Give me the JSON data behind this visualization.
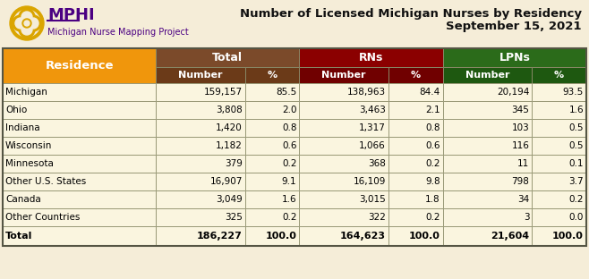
{
  "title_line1": "Number of Licensed Michigan Nurses by Residency",
  "title_line2": "September 15, 2021",
  "header_residence": "Residence",
  "col_groups": [
    "Total",
    "RNs",
    "LPNs"
  ],
  "col_subheaders": [
    "Number",
    "%",
    "Number",
    "%",
    "Number",
    "%"
  ],
  "rows": [
    [
      "Michigan",
      "159,157",
      "85.5",
      "138,963",
      "84.4",
      "20,194",
      "93.5"
    ],
    [
      "Ohio",
      "3,808",
      "2.0",
      "3,463",
      "2.1",
      "345",
      "1.6"
    ],
    [
      "Indiana",
      "1,420",
      "0.8",
      "1,317",
      "0.8",
      "103",
      "0.5"
    ],
    [
      "Wisconsin",
      "1,182",
      "0.6",
      "1,066",
      "0.6",
      "116",
      "0.5"
    ],
    [
      "Minnesota",
      "379",
      "0.2",
      "368",
      "0.2",
      "11",
      "0.1"
    ],
    [
      "Other U.S. States",
      "16,907",
      "9.1",
      "16,109",
      "9.8",
      "798",
      "3.7"
    ],
    [
      "Canada",
      "3,049",
      "1.6",
      "3,015",
      "1.8",
      "34",
      "0.2"
    ],
    [
      "Other Countries",
      "325",
      "0.2",
      "322",
      "0.2",
      "3",
      "0.0"
    ]
  ],
  "total_row": [
    "Total",
    "186,227",
    "100.0",
    "164,623",
    "100.0",
    "21,604",
    "100.0"
  ],
  "color_residence_header": "#F0960C",
  "color_total_header": "#7B4A2A",
  "color_rns_header": "#8B0000",
  "color_lpns_header": "#2B6B1A",
  "color_subheader_total": "#6B3A18",
  "color_subheader_rns": "#700000",
  "color_subheader_lpns": "#1E5810",
  "color_row_bg": "#FAF5DF",
  "color_border": "#999977",
  "bg_color": "#F5EDD8",
  "title_color": "#111111",
  "logo_color": "#DAA500",
  "logo_text_color": "#4B0082",
  "logo_text_mphi": "MPHI",
  "logo_text_sub": "Michigan Nurse Mapping Project"
}
